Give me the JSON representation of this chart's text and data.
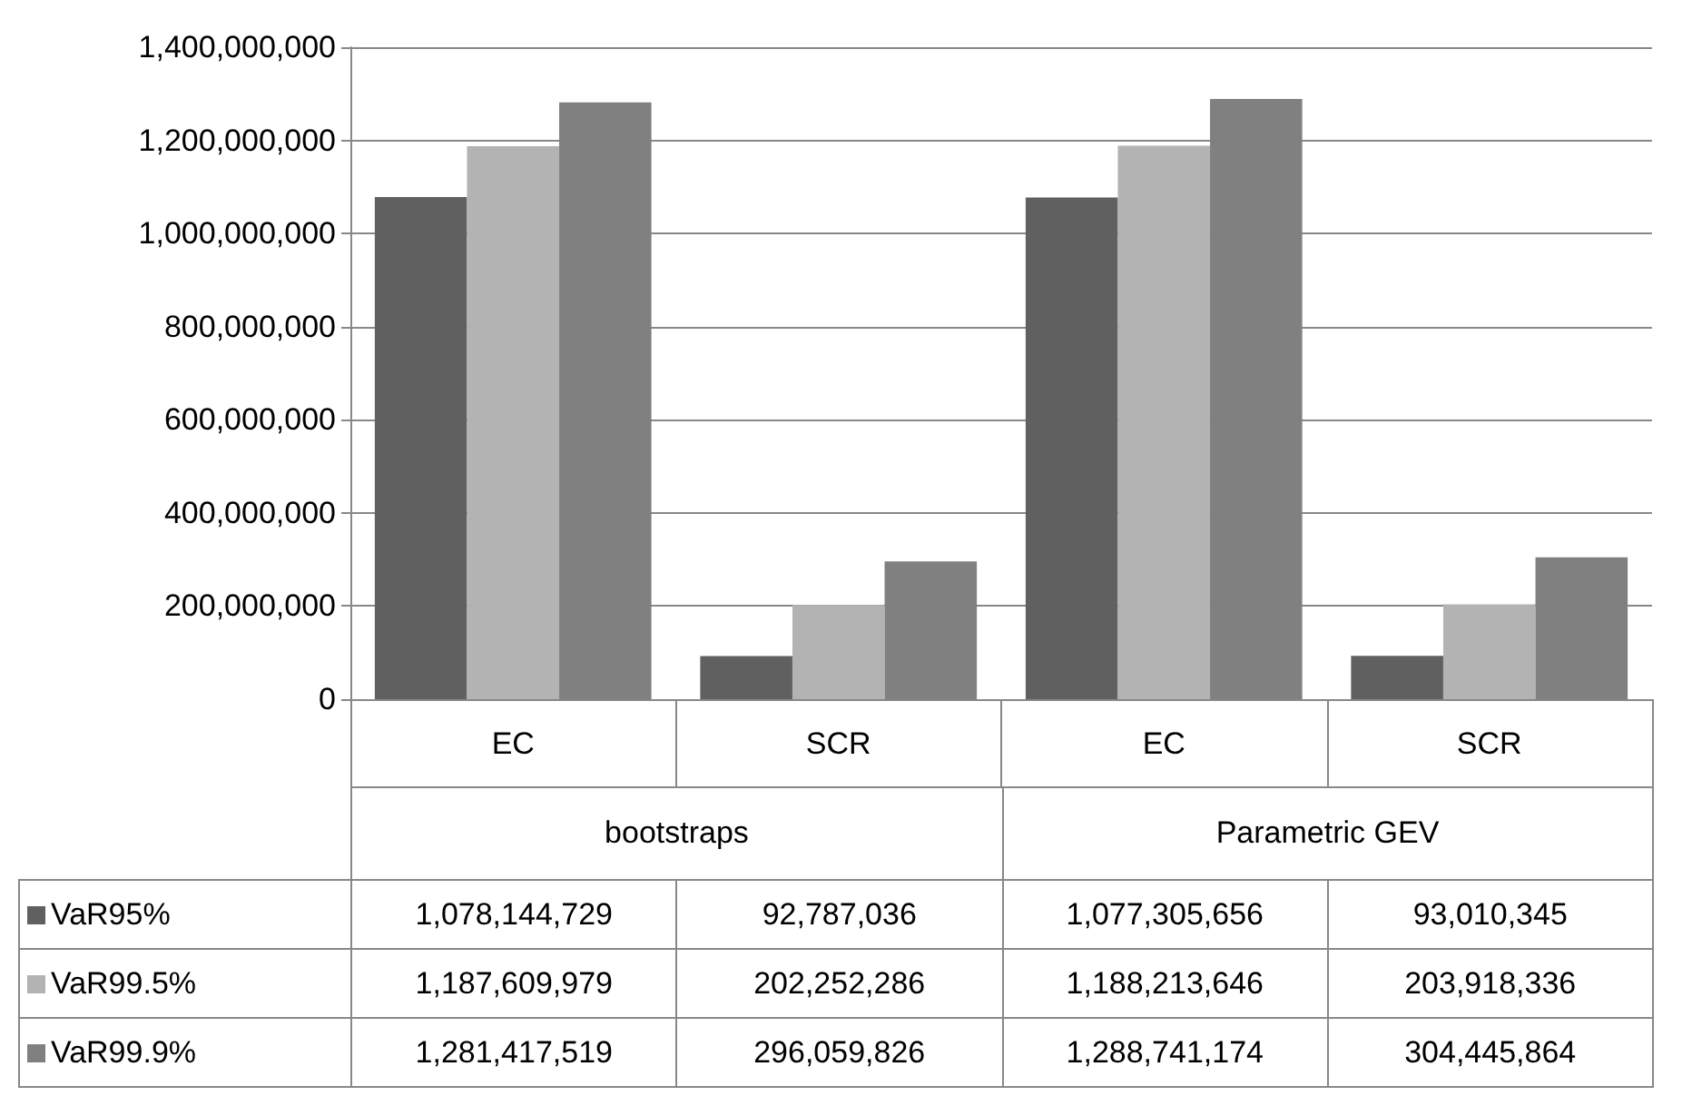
{
  "chart_data": {
    "type": "bar",
    "categories": [
      "EC",
      "SCR",
      "EC",
      "SCR"
    ],
    "annotations": [
      "bootstraps",
      "Parametric GEV"
    ],
    "series": [
      {
        "name": "VaR95%",
        "color": "#606060",
        "values": [
          1078144729,
          92787036,
          1077305656,
          93010345
        ],
        "value_labels": [
          "1,078,144,729",
          "92,787,036",
          "1,077,305,656",
          "93,010,345"
        ]
      },
      {
        "name": "VaR99.5%",
        "color": "#b3b3b3",
        "values": [
          1187609979,
          202252286,
          1188213646,
          203918336
        ],
        "value_labels": [
          "1,187,609,979",
          "202,252,286",
          "1,188,213,646",
          "203,918,336"
        ]
      },
      {
        "name": "VaR99.9%",
        "color": "#808080",
        "values": [
          1281417519,
          296059826,
          1288741174,
          304445864
        ],
        "value_labels": [
          "1,281,417,519",
          "296,059,826",
          "1,288,741,174",
          "304,445,864"
        ]
      }
    ],
    "ylim": [
      0,
      1400000000
    ],
    "yticks": [
      {
        "value": 0,
        "label": "0"
      },
      {
        "value": 200000000,
        "label": "200,000,000"
      },
      {
        "value": 400000000,
        "label": "400,000,000"
      },
      {
        "value": 600000000,
        "label": "600,000,000"
      },
      {
        "value": 800000000,
        "label": "800,000,000"
      },
      {
        "value": 1000000000,
        "label": "1,000,000,000"
      },
      {
        "value": 1200000000,
        "label": "1,200,000,000"
      },
      {
        "value": 1400000000,
        "label": "1,400,000,000"
      }
    ],
    "grid": "y",
    "legend": "bottom"
  }
}
